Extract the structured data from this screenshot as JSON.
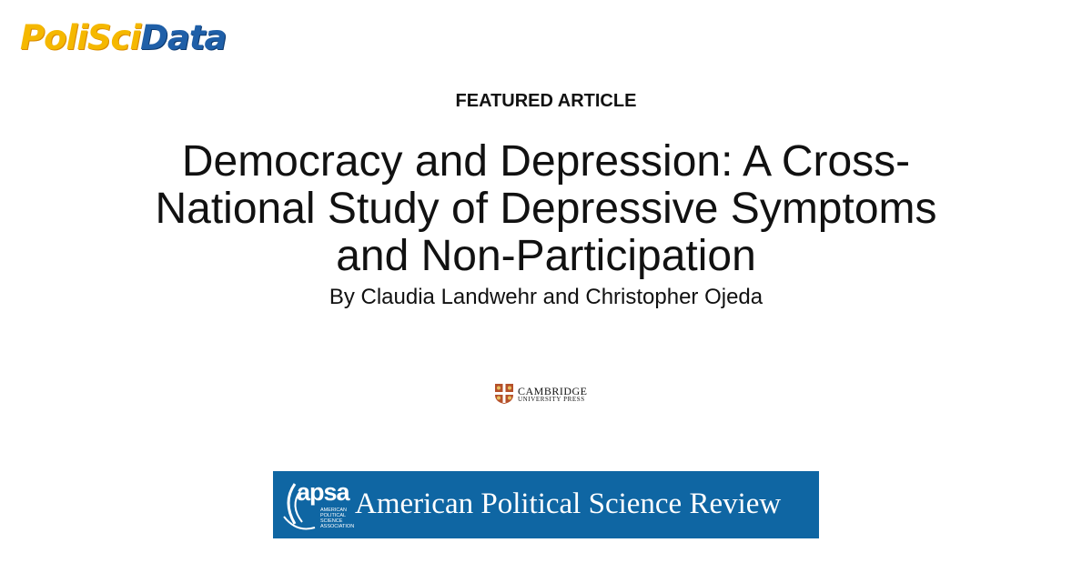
{
  "logo": {
    "first": "PoliSci",
    "second": "Data"
  },
  "label": "FEATURED ARTICLE",
  "title": "Democracy and Depression: A Cross-National Study of Depressive Symptoms and Non-Participation",
  "authors": "By Claudia Landwehr and Christopher Ojeda",
  "publisher": {
    "name": "CAMBRIDGE",
    "sub": "UNIVERSITY PRESS"
  },
  "journal": {
    "mark": "apsa",
    "association": [
      "AMERICAN",
      "POLITICAL",
      "SCIENCE",
      "ASSOCIATION"
    ],
    "name": "American Political Science Review"
  }
}
